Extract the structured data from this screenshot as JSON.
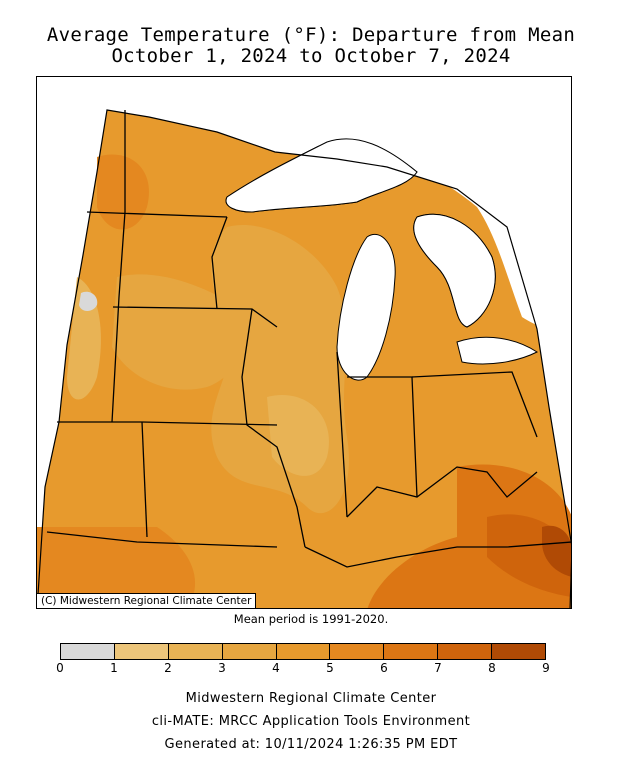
{
  "title": {
    "line1": "Average Temperature (°F): Departure from Mean",
    "line2": "October 1, 2024 to October 7, 2024"
  },
  "map": {
    "copyright": "(C) Midwestern Regional Climate Center",
    "region": "Midwest United States",
    "lake_color": "#ffffff",
    "border_color": "#000000"
  },
  "mean_period": "Mean period is 1991-2020.",
  "legend": {
    "ticks": [
      "0",
      "1",
      "2",
      "3",
      "4",
      "5",
      "6",
      "7",
      "8",
      "9"
    ],
    "colors": [
      "#d9d9d9",
      "#ecc57a",
      "#e8b355",
      "#e6a640",
      "#e79a2d",
      "#e48820",
      "#dc7614",
      "#cf640c",
      "#b04a05"
    ]
  },
  "footer": {
    "line1": "Midwestern Regional Climate Center",
    "line2": "cli-MATE: MRCC Application Tools Environment",
    "line3": "Generated at: 10/11/2024 1:26:35 PM EDT"
  }
}
